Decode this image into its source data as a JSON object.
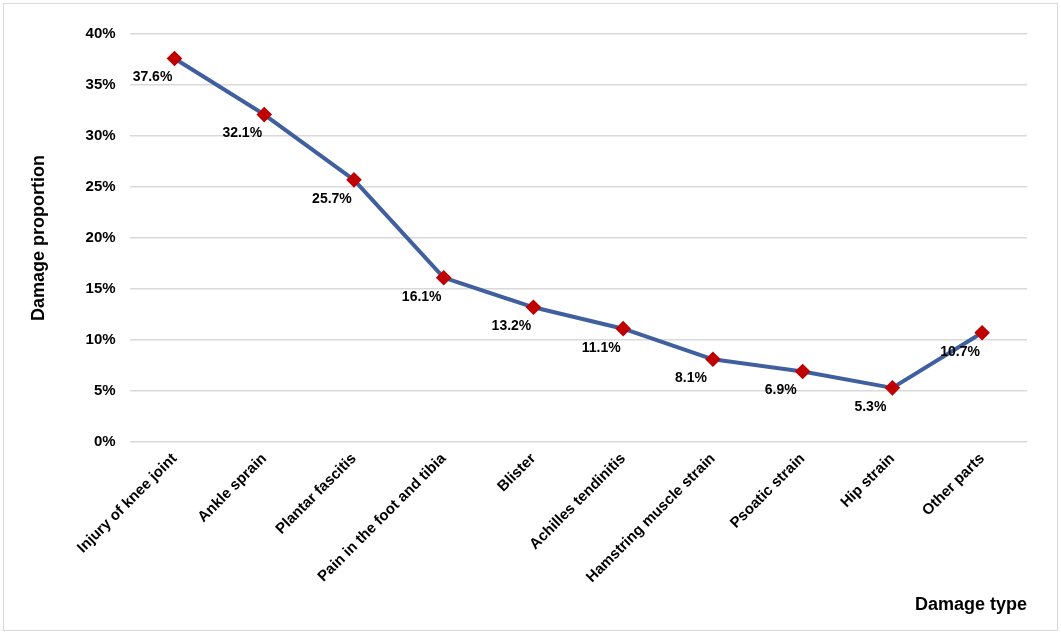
{
  "chart_data": {
    "type": "line",
    "xlabel": "Damage type",
    "ylabel": "Damage proportion",
    "categories": [
      "Injury of knee joint",
      "Ankle sprain",
      "Plantar fascitis",
      "Pain in the foot and tibia",
      "Blister",
      "Achilles tendinitis",
      "Hamstring muscle strain",
      "Psoatic strain",
      "Hip strain",
      "Other parts"
    ],
    "series": [
      {
        "color": "#3f5f9e",
        "colors": [
          "#c00000",
          "#c00000",
          "#c00000",
          "#c00000",
          "#c00000",
          "#c00000",
          "#c00000",
          "#c00000",
          "#c00000",
          "#c00000"
        ],
        "values": [
          37.6,
          32.1,
          25.7,
          16.1,
          13.2,
          11.1,
          8.1,
          6.9,
          5.3,
          10.7
        ],
        "value_labels": [
          "37.6%",
          "32.1%",
          "25.7%",
          "16.1%",
          "13.2%",
          "11.1%",
          "8.1%",
          "6.9%",
          "5.3%",
          "10.7%"
        ]
      }
    ],
    "marker": "diamond",
    "line_style": "solid",
    "grid": "y",
    "legend": false,
    "ylim": [
      0,
      40
    ],
    "yticks": [
      {
        "value": 0,
        "label": "0%"
      },
      {
        "value": 5,
        "label": "5%"
      },
      {
        "value": 10,
        "label": "10%"
      },
      {
        "value": 15,
        "label": "15%"
      },
      {
        "value": 20,
        "label": "20%"
      },
      {
        "value": 25,
        "label": "25%"
      },
      {
        "value": 30,
        "label": "30%"
      },
      {
        "value": 35,
        "label": "35%"
      },
      {
        "value": 40,
        "label": "40%"
      }
    ]
  }
}
